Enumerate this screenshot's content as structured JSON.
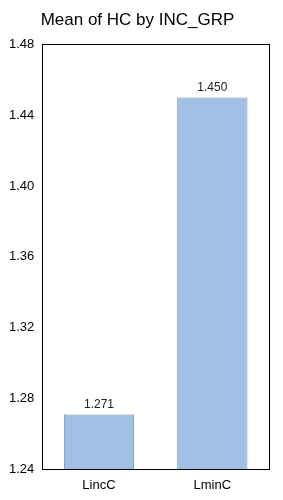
{
  "chart_data": {
    "type": "bar",
    "title": "Mean of HC by INC_GRP",
    "categories": [
      "LincC",
      "LminC"
    ],
    "values": [
      1.271,
      1.45
    ],
    "value_labels": [
      "1.271",
      "1.450"
    ],
    "color": "#a2c0e6",
    "ylim": [
      1.24,
      1.48
    ],
    "yticks": [
      1.24,
      1.28,
      1.32,
      1.36,
      {
        "value": 1.4,
        "label": "1.40"
      },
      1.44,
      1.48
    ],
    "grid": false,
    "data_labels": true
  }
}
